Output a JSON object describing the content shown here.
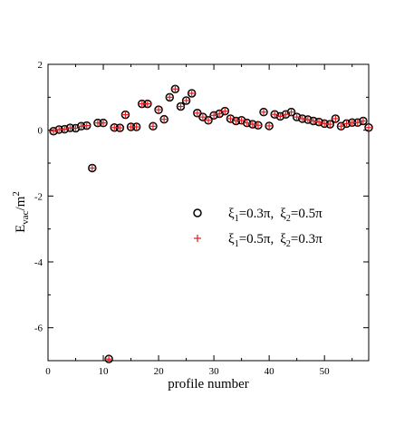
{
  "chart_data": {
    "type": "scatter",
    "title": "",
    "xlabel": "profile number",
    "ylabel": {
      "base": "E",
      "sub": "vac",
      "rest": "/m",
      "sup": "2"
    },
    "xlim": [
      0,
      58
    ],
    "ylim": [
      -7,
      2
    ],
    "x_ticks": [
      "0",
      "10",
      "20",
      "30",
      "40",
      "50"
    ],
    "y_ticks": [
      "-6",
      "-4",
      "-2",
      "0",
      "2"
    ],
    "grid": false,
    "legend_position": "center-right",
    "series": [
      {
        "name": {
          "a": "ξ",
          "a_sub": "1",
          "a_val": "=0.3π,",
          "b": "ξ",
          "b_sub": "2",
          "b_val": "=0.5π"
        },
        "marker": "circle",
        "color": "#000000",
        "x": [
          1,
          2,
          3,
          4,
          5,
          6,
          7,
          8,
          9,
          10,
          11,
          12,
          13,
          14,
          15,
          16,
          17,
          18,
          19,
          20,
          21,
          22,
          23,
          24,
          25,
          26,
          27,
          28,
          29,
          30,
          31,
          32,
          33,
          34,
          35,
          36,
          37,
          38,
          39,
          40,
          41,
          42,
          43,
          44,
          45,
          46,
          47,
          48,
          49,
          50,
          51,
          52,
          53,
          54,
          55,
          56,
          57,
          58
        ],
        "y": [
          -0.03,
          0.02,
          0.03,
          0.07,
          0.06,
          0.12,
          0.14,
          -1.15,
          0.22,
          0.22,
          -6.95,
          0.08,
          0.07,
          0.47,
          0.1,
          0.1,
          0.8,
          0.8,
          0.12,
          0.62,
          0.33,
          1.0,
          1.25,
          0.72,
          0.9,
          1.12,
          0.52,
          0.4,
          0.3,
          0.45,
          0.5,
          0.58,
          0.35,
          0.28,
          0.3,
          0.22,
          0.18,
          0.15,
          0.55,
          0.13,
          0.48,
          0.42,
          0.48,
          0.55,
          0.4,
          0.35,
          0.32,
          0.28,
          0.25,
          0.2,
          0.18,
          0.35,
          0.12,
          0.2,
          0.23,
          0.23,
          0.28,
          0.08
        ]
      },
      {
        "name": {
          "a": "ξ",
          "a_sub": "1",
          "a_val": "=0.5π,",
          "b": "ξ",
          "b_sub": "2",
          "b_val": "=0.3π"
        },
        "marker": "plus",
        "color": "#e02020",
        "x": [
          1,
          2,
          3,
          4,
          5,
          6,
          7,
          8,
          9,
          10,
          11,
          12,
          13,
          14,
          15,
          16,
          17,
          18,
          19,
          20,
          21,
          22,
          23,
          24,
          25,
          26,
          27,
          28,
          29,
          30,
          31,
          32,
          33,
          34,
          35,
          36,
          37,
          38,
          39,
          40,
          41,
          42,
          43,
          44,
          45,
          46,
          47,
          48,
          49,
          50,
          51,
          52,
          53,
          54,
          55,
          56,
          57,
          58
        ],
        "y": [
          -0.03,
          0.02,
          0.03,
          0.07,
          0.06,
          0.12,
          0.14,
          -1.15,
          0.22,
          0.22,
          -6.95,
          0.08,
          0.07,
          0.47,
          0.1,
          0.1,
          0.8,
          0.8,
          0.12,
          0.62,
          0.33,
          1.0,
          1.25,
          0.72,
          0.9,
          1.12,
          0.52,
          0.4,
          0.3,
          0.45,
          0.5,
          0.58,
          0.35,
          0.28,
          0.3,
          0.22,
          0.18,
          0.15,
          0.55,
          0.13,
          0.48,
          0.42,
          0.48,
          0.55,
          0.4,
          0.35,
          0.32,
          0.28,
          0.25,
          0.2,
          0.18,
          0.35,
          0.12,
          0.2,
          0.23,
          0.23,
          0.28,
          0.08
        ]
      }
    ]
  }
}
